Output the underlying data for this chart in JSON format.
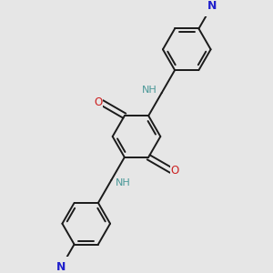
{
  "bg_color": "#e6e6e6",
  "bond_color": "#1a1a1a",
  "N_color": "#2020cc",
  "NH_color": "#4a9898",
  "O_color": "#cc2020",
  "line_width": 1.4,
  "dbo": 0.012,
  "figsize": [
    3.0,
    3.0
  ],
  "dpi": 100,
  "xlim": [
    -4.5,
    4.5
  ],
  "ylim": [
    -5.0,
    5.0
  ]
}
